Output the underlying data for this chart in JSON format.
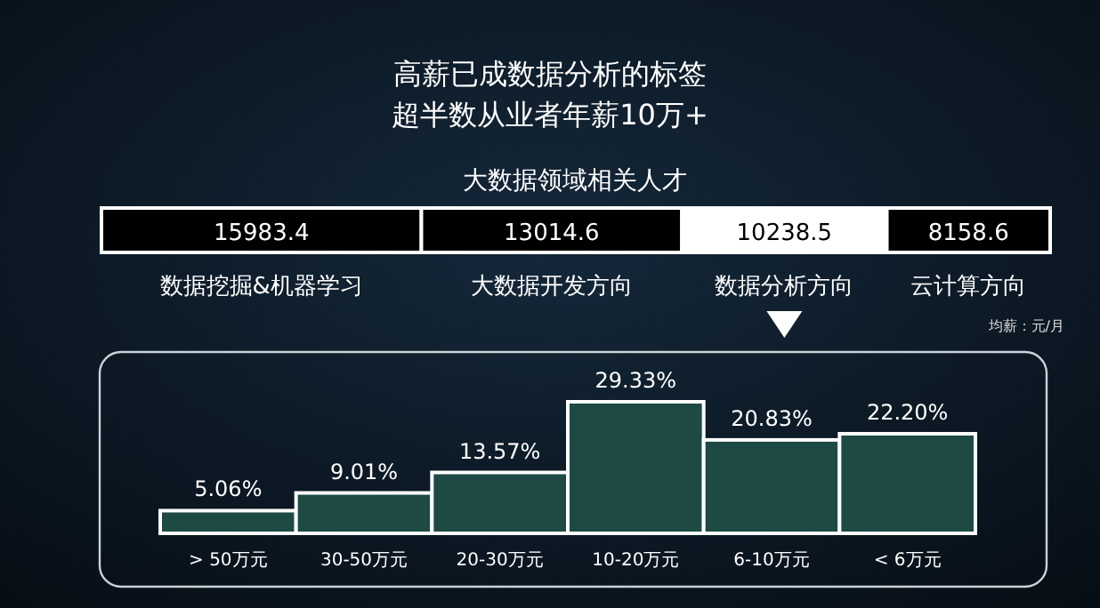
{
  "chart_data": [
    {
      "type": "other",
      "title": "高薪已成数据分析的标签",
      "subtitle": "超半数从业者年薪10万+",
      "categories": [
        "数据挖掘&机器学习",
        "大数据开发方向",
        "数据分析方向",
        "云计算方向"
      ],
      "values": [
        15983.4,
        13014.6,
        10238.5,
        8158.6
      ],
      "colors": [
        "#000000",
        "#000000",
        "#ffffff",
        "#000000"
      ],
      "data_labels": true,
      "annotations": [
        "大数据领域相关人才",
        "均薪：元/月"
      ]
    },
    {
      "type": "bar",
      "categories": [
        "> 50万元",
        "30-50万元",
        "20-30万元",
        "10-20万元",
        "6-10万元",
        "< 6万元"
      ],
      "values": [
        5.06,
        9.01,
        13.57,
        29.33,
        20.83,
        22.2
      ],
      "value_labels": [
        "5.06%",
        "9.01%",
        "13.57%",
        "29.33%",
        "20.83%",
        "22.20%"
      ],
      "color": "#1d4a45"
    }
  ]
}
